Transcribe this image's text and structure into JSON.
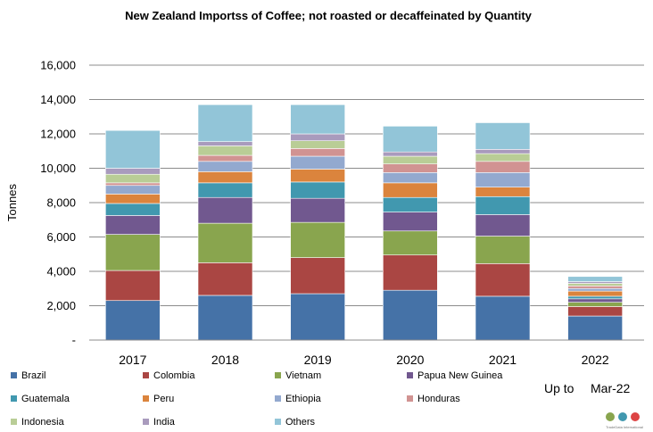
{
  "chart_data": {
    "type": "bar",
    "stacked": true,
    "title": "New Zealand Importss of Coffee; not roasted or decaffeinated by Quantity",
    "ylabel": "Tonnes",
    "xlabel": "",
    "ylim": [
      0,
      16000
    ],
    "y_ticks": [
      {
        "value": 0,
        "label": "-"
      },
      {
        "value": 2000,
        "label": "2,000"
      },
      {
        "value": 4000,
        "label": "4,000"
      },
      {
        "value": 6000,
        "label": "6,000"
      },
      {
        "value": 8000,
        "label": "8,000"
      },
      {
        "value": 10000,
        "label": "10,000"
      },
      {
        "value": 12000,
        "label": "12,000"
      },
      {
        "value": 14000,
        "label": "14,000"
      },
      {
        "value": 16000,
        "label": "16,000"
      }
    ],
    "grid": true,
    "legend_position": "bottom",
    "categories": [
      "2017",
      "2018",
      "2019",
      "2020",
      "2021",
      "2022"
    ],
    "series": [
      {
        "name": "Brazil",
        "color": "#4572A7",
        "values": [
          2300,
          2600,
          2700,
          2900,
          2550,
          1400
        ]
      },
      {
        "name": "Colombia",
        "color": "#AA4643",
        "values": [
          1750,
          1900,
          2100,
          2050,
          1900,
          550
        ]
      },
      {
        "name": "Vietnam",
        "color": "#89A54E",
        "values": [
          2100,
          2300,
          2050,
          1400,
          1600,
          250
        ]
      },
      {
        "name": "Papua New Guinea",
        "color": "#71588F",
        "values": [
          1100,
          1500,
          1400,
          1100,
          1250,
          200
        ]
      },
      {
        "name": "Guatemala",
        "color": "#4198AF",
        "values": [
          700,
          850,
          950,
          850,
          1050,
          150
        ]
      },
      {
        "name": "Peru",
        "color": "#DB843D",
        "values": [
          550,
          650,
          750,
          850,
          550,
          300
        ]
      },
      {
        "name": "Ethiopia",
        "color": "#93A9CF",
        "values": [
          500,
          600,
          750,
          600,
          850,
          150
        ]
      },
      {
        "name": "Honduras",
        "color": "#D19392",
        "values": [
          150,
          350,
          450,
          500,
          650,
          150
        ]
      },
      {
        "name": "Indonesia",
        "color": "#B9CD96",
        "values": [
          500,
          550,
          450,
          450,
          450,
          150
        ]
      },
      {
        "name": "India",
        "color": "#A99BBD",
        "values": [
          350,
          250,
          400,
          250,
          250,
          100
        ]
      },
      {
        "name": "Others",
        "color": "#92C5D8",
        "values": [
          2200,
          2150,
          1700,
          1500,
          1550,
          300
        ]
      }
    ]
  },
  "note": {
    "prefix": "Up to",
    "value": "Mar-22"
  },
  "logo_text": "TradeData International"
}
